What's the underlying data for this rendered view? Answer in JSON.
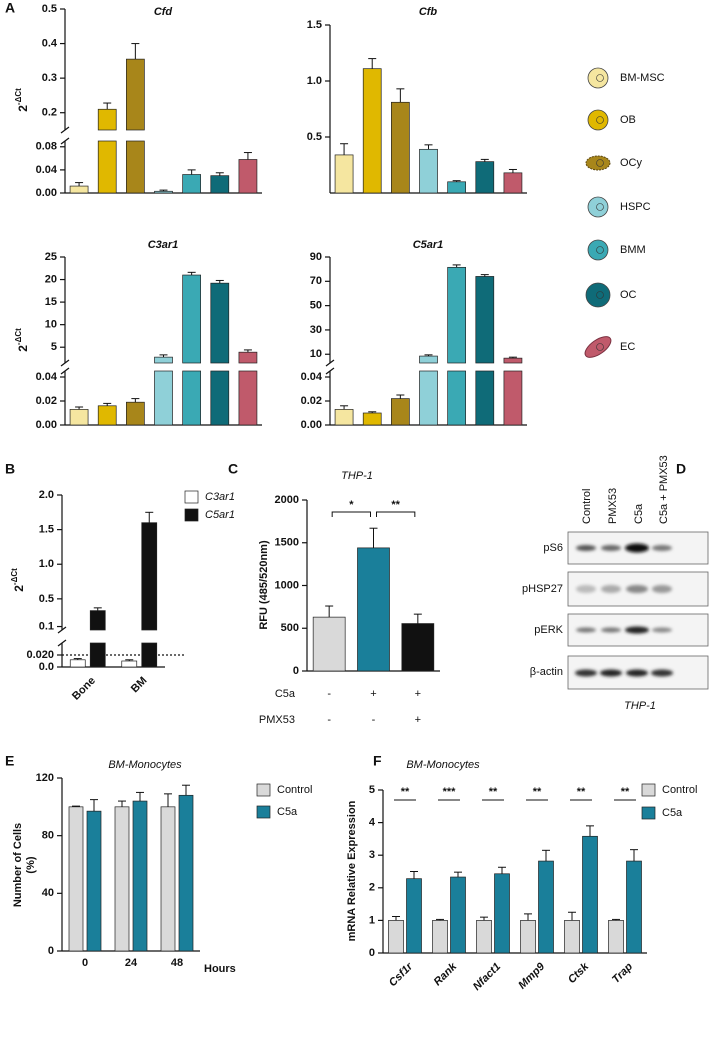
{
  "cell_types": {
    "names": [
      "BM-MSC",
      "OB",
      "OCy",
      "HSPC",
      "BMM",
      "OC",
      "EC"
    ],
    "colors": [
      "#f5e6a0",
      "#e0b800",
      "#a8861a",
      "#8fd0d8",
      "#3aa9b4",
      "#0f6b78",
      "#c05a6b"
    ]
  },
  "chart_data": [
    {
      "panel": "A",
      "type": "bar",
      "title": "Cfd",
      "ylabel": {
        "base": "2",
        "exponent": "-ΔCt"
      },
      "values": [
        0.012,
        0.21,
        0.355,
        0.003,
        0.032,
        0.03,
        0.058
      ],
      "errors": [
        0.006,
        0.018,
        0.045,
        0.002,
        0.008,
        0.005,
        0.012
      ],
      "y_segments": [
        {
          "ylim": [
            0,
            0.09
          ],
          "yticks": [
            {
              "value": 0,
              "label": "0.00"
            },
            {
              "value": 0.04,
              "label": "0.04"
            },
            {
              "value": 0.08,
              "label": "0.08"
            }
          ]
        },
        {
          "ylim": [
            0.15,
            0.5
          ],
          "yticks": [
            0.2,
            0.3,
            0.4,
            0.5
          ]
        }
      ]
    },
    {
      "type": "bar",
      "title": "Cfb",
      "values": [
        0.34,
        1.11,
        0.81,
        0.39,
        0.1,
        0.28,
        0.18
      ],
      "errors": [
        0.1,
        0.09,
        0.12,
        0.04,
        0.01,
        0.02,
        0.03
      ],
      "ylim": [
        0,
        1.5
      ],
      "yticks": [
        {
          "value": 0.5,
          "label": "0.5"
        },
        {
          "value": 1,
          "label": "1.0"
        },
        {
          "value": 1.5,
          "label": "1.5"
        }
      ]
    },
    {
      "type": "bar",
      "title": "C3ar1",
      "ylabel": {
        "base": "2",
        "exponent": "-ΔCt"
      },
      "values": [
        0.013,
        0.016,
        0.019,
        2.8,
        21,
        19.2,
        3.9
      ],
      "errors": [
        0.002,
        0.002,
        0.003,
        0.5,
        0.6,
        0.6,
        0.5
      ],
      "y_segments": [
        {
          "ylim": [
            0,
            0.045
          ],
          "yticks": [
            {
              "value": 0,
              "label": "0.00"
            },
            {
              "value": 0.02,
              "label": "0.02"
            },
            {
              "value": 0.04,
              "label": "0.04"
            }
          ]
        },
        {
          "ylim": [
            1.5,
            25
          ],
          "yticks": [
            5,
            10,
            15,
            20,
            25
          ]
        }
      ]
    },
    {
      "type": "bar",
      "title": "C5ar1",
      "values": [
        0.013,
        0.01,
        0.022,
        8.5,
        81.5,
        74,
        6.8
      ],
      "errors": [
        0.003,
        0.001,
        0.003,
        1,
        2,
        1.5,
        0.8
      ],
      "y_segments": [
        {
          "ylim": [
            0,
            0.045
          ],
          "yticks": [
            {
              "value": 0,
              "label": "0.00"
            },
            {
              "value": 0.02,
              "label": "0.02"
            },
            {
              "value": 0.04,
              "label": "0.04"
            }
          ]
        },
        {
          "ylim": [
            2.8,
            90
          ],
          "yticks": [
            10,
            30,
            50,
            70,
            90
          ]
        }
      ]
    },
    {
      "panel": "B",
      "type": "bar",
      "ylabel": {
        "base": "2",
        "exponent": "-ΔCt"
      },
      "categories": [
        "Bone",
        "BM"
      ],
      "series": [
        {
          "name": "C3ar1",
          "color": "#ffffff",
          "values": [
            0.012,
            0.01
          ],
          "errors": [
            0.002,
            0.002
          ]
        },
        {
          "name": "C5ar1",
          "color": "#111111",
          "values": [
            0.33,
            1.6
          ],
          "errors": [
            0.04,
            0.15
          ]
        }
      ],
      "reference_line": {
        "value": 0.02
      },
      "y_segments": [
        {
          "ylim": [
            0,
            0.04
          ],
          "yticks": [
            {
              "value": 0,
              "label": "0.0"
            },
            {
              "value": 0.02,
              "label": "0.020"
            }
          ]
        },
        {
          "ylim": [
            0.05,
            2.0
          ],
          "yticks": [
            {
              "value": 0.1,
              "label": "0.1"
            },
            {
              "value": 0.5,
              "label": "0.5"
            },
            {
              "value": 1,
              "label": "1.0"
            },
            {
              "value": 1.5,
              "label": "1.5"
            },
            {
              "value": 2,
              "label": "2.0"
            }
          ]
        }
      ]
    },
    {
      "panel": "C",
      "type": "bar",
      "title": "THP-1",
      "ylabel": "RFU (485/520nm)",
      "values": [
        630,
        1440,
        555
      ],
      "errors": [
        130,
        230,
        110
      ],
      "colors": [
        "#d9d9d9",
        "#1a7f9a",
        "#111111"
      ],
      "ylim": [
        0,
        2000
      ],
      "yticks": [
        0,
        500,
        1000,
        1500,
        2000
      ],
      "conditions": [
        {
          "name": "C5a",
          "signs": [
            "-",
            "+",
            "+"
          ]
        },
        {
          "name": "PMX53",
          "signs": [
            "-",
            "-",
            "+"
          ]
        }
      ],
      "significance": [
        {
          "from": 0,
          "to": 1,
          "label": "*"
        },
        {
          "from": 1,
          "to": 2,
          "label": "**"
        }
      ]
    },
    {
      "panel": "E",
      "type": "bar",
      "title": "BM-Monocytes",
      "ylabel": [
        "Number of Cells",
        "(%)"
      ],
      "xlabel": "Hours",
      "categories": [
        "0",
        "24",
        "48"
      ],
      "series": [
        {
          "name": "Control",
          "color": "#d9d9d9",
          "values": [
            100,
            100,
            100
          ],
          "errors": [
            0.5,
            4,
            9
          ]
        },
        {
          "name": "C5a",
          "color": "#1a7f9a",
          "values": [
            97,
            104,
            108
          ],
          "errors": [
            8,
            6,
            7
          ]
        }
      ],
      "ylim": [
        0,
        120
      ],
      "yticks": [
        0,
        40,
        80,
        120
      ]
    },
    {
      "panel": "F",
      "type": "bar",
      "title": "BM-Monocytes",
      "ylabel": "mRNA Relative Expression",
      "categories": [
        "Csf1r",
        "Rank",
        "Nfact1",
        "Mmp9",
        "Ctsk",
        "Trap"
      ],
      "series": [
        {
          "name": "Control",
          "color": "#d9d9d9",
          "values": [
            1,
            1,
            1,
            1,
            1,
            1
          ],
          "errors": [
            0.12,
            0.03,
            0.1,
            0.2,
            0.25,
            0.03
          ]
        },
        {
          "name": "C5a",
          "color": "#1a7f9a",
          "values": [
            2.28,
            2.33,
            2.43,
            2.82,
            3.58,
            2.82
          ],
          "errors": [
            0.22,
            0.15,
            0.2,
            0.33,
            0.32,
            0.35
          ]
        }
      ],
      "significance": [
        "**",
        "***",
        "**",
        "**",
        "**",
        "**"
      ],
      "ylim": [
        0,
        5
      ],
      "yticks": [
        0,
        1,
        2,
        3,
        4,
        5
      ]
    }
  ],
  "blot": {
    "panel": "D",
    "lanes": [
      "Control",
      "PMX53",
      "C5a",
      "C5a + PMX53"
    ],
    "bands": [
      "pS6",
      "pHSP27",
      "pERK",
      "β-actin"
    ],
    "cell_line": "THP-1"
  }
}
